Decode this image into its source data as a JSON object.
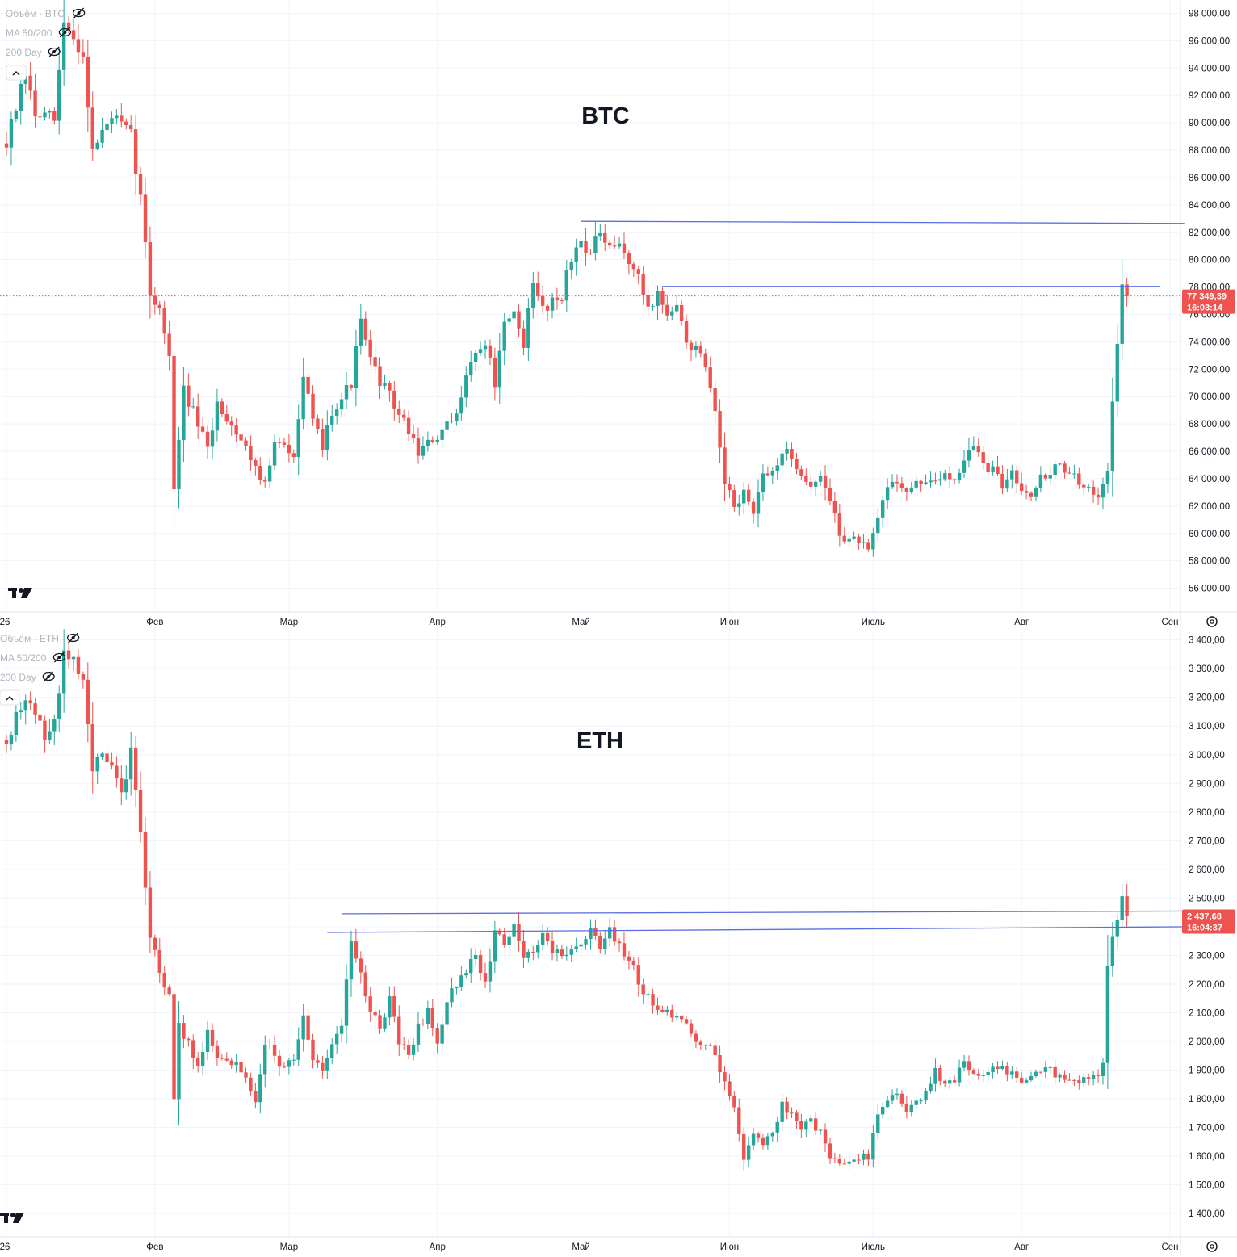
{
  "colors": {
    "up": "#26a69a",
    "down": "#ef5350",
    "level": "#5b6ee1",
    "grid": "#f0f3fa",
    "text": "#131722",
    "muted": "#b2b5be"
  },
  "icons": {
    "logo": "tradingview-logo-icon",
    "eye": "eye-off-icon",
    "collapse": "chevron-up-icon",
    "settings": "gear-icon"
  },
  "x_axis": {
    "labels": [
      "26",
      "Фев",
      "Мар",
      "Апр",
      "Май",
      "Июн",
      "Июль",
      "Авг",
      "Сен"
    ],
    "days": [
      0,
      31,
      59,
      90,
      120,
      151,
      181,
      212,
      243
    ]
  },
  "chart_data": [
    {
      "type": "candlestick",
      "title": "BTC",
      "legend": [
        "Объём · BTC",
        "MA 50/200",
        "200 Day"
      ],
      "ylim": [
        54500,
        98500
      ],
      "yticks": [
        56000,
        58000,
        60000,
        62000,
        64000,
        66000,
        68000,
        70000,
        72000,
        74000,
        76000,
        78000,
        80000,
        82000,
        84000,
        86000,
        88000,
        90000,
        92000,
        94000,
        96000,
        98000
      ],
      "ytick_labels": [
        "56 000,00",
        "58 000,00",
        "60 000,00",
        "62 000,00",
        "64 000,00",
        "66 000,00",
        "68 000,00",
        "70 000,00",
        "72 000,00",
        "74 000,00",
        "76 000,00",
        "78 000,00",
        "80 000,00",
        "82 000,00",
        "84 000,00",
        "86 000,00",
        "88 000,00",
        "90 000,00",
        "92 000,00",
        "94 000,00",
        "96 000,00",
        "98 000,00"
      ],
      "last_price": 77349.39,
      "last_price_label": "77 349,39",
      "countdown_label": "16:03:14",
      "levels": [
        {
          "from_day": 120,
          "to_day": 246,
          "from": 82800,
          "to": 82650
        },
        {
          "from_day": 137,
          "to_day": 241,
          "from": 78050,
          "to": 78050
        }
      ],
      "anchors": [
        [
          0,
          88500
        ],
        [
          4,
          93500
        ],
        [
          6,
          90500
        ],
        [
          10,
          90200
        ],
        [
          12,
          97200
        ],
        [
          16,
          95000
        ],
        [
          18,
          88000
        ],
        [
          22,
          90500
        ],
        [
          26,
          89000
        ],
        [
          28,
          84500
        ],
        [
          30,
          77500
        ],
        [
          32,
          76500
        ],
        [
          34,
          73000
        ],
        [
          35,
          63000
        ],
        [
          37,
          70500
        ],
        [
          40,
          68000
        ],
        [
          42,
          66000
        ],
        [
          44,
          69500
        ],
        [
          48,
          67500
        ],
        [
          52,
          65000
        ],
        [
          54,
          63500
        ],
        [
          56,
          66500
        ],
        [
          60,
          66000
        ],
        [
          62,
          71500
        ],
        [
          64,
          68000
        ],
        [
          66,
          66500
        ],
        [
          68,
          69000
        ],
        [
          72,
          71000
        ],
        [
          74,
          75500
        ],
        [
          76,
          72500
        ],
        [
          80,
          70000
        ],
        [
          84,
          67500
        ],
        [
          86,
          66000
        ],
        [
          88,
          66500
        ],
        [
          90,
          67000
        ],
        [
          94,
          68500
        ],
        [
          96,
          72000
        ],
        [
          100,
          74000
        ],
        [
          102,
          71000
        ],
        [
          104,
          75000
        ],
        [
          106,
          76000
        ],
        [
          108,
          74000
        ],
        [
          110,
          78000
        ],
        [
          112,
          76500
        ],
        [
          116,
          77500
        ],
        [
          118,
          80000
        ],
        [
          120,
          81500
        ],
        [
          122,
          80500
        ],
        [
          124,
          82000
        ],
        [
          126,
          80500
        ],
        [
          128,
          81000
        ],
        [
          130,
          80000
        ],
        [
          132,
          78500
        ],
        [
          134,
          76500
        ],
        [
          136,
          77500
        ],
        [
          138,
          76000
        ],
        [
          140,
          76500
        ],
        [
          142,
          74000
        ],
        [
          144,
          73500
        ],
        [
          146,
          72000
        ],
        [
          148,
          68500
        ],
        [
          150,
          63500
        ],
        [
          152,
          62000
        ],
        [
          154,
          63000
        ],
        [
          156,
          61500
        ],
        [
          158,
          64000
        ],
        [
          160,
          64500
        ],
        [
          162,
          66000
        ],
        [
          164,
          65500
        ],
        [
          166,
          64500
        ],
        [
          168,
          63500
        ],
        [
          170,
          64000
        ],
        [
          172,
          62500
        ],
        [
          174,
          60000
        ],
        [
          176,
          59500
        ],
        [
          178,
          59500
        ],
        [
          180,
          58500
        ],
        [
          182,
          61000
        ],
        [
          184,
          63500
        ],
        [
          186,
          64000
        ],
        [
          188,
          63000
        ],
        [
          190,
          63500
        ],
        [
          192,
          64000
        ],
        [
          194,
          63500
        ],
        [
          196,
          64500
        ],
        [
          198,
          64000
        ],
        [
          200,
          65500
        ],
        [
          202,
          66500
        ],
        [
          204,
          65000
        ],
        [
          206,
          64500
        ],
        [
          208,
          63500
        ],
        [
          210,
          64500
        ],
        [
          212,
          63500
        ],
        [
          214,
          63000
        ],
        [
          216,
          64000
        ],
        [
          218,
          64500
        ],
        [
          220,
          65000
        ],
        [
          222,
          64500
        ],
        [
          224,
          63500
        ],
        [
          226,
          63000
        ],
        [
          228,
          63000
        ],
        [
          229,
          64000
        ],
        [
          230,
          64500
        ],
        [
          231,
          70000
        ],
        [
          232,
          73500
        ],
        [
          233,
          78000
        ],
        [
          234,
          77350
        ]
      ],
      "seed": 7,
      "volatility": 0.011
    },
    {
      "type": "candlestick",
      "title": "ETH",
      "legend": [
        "Объём · ETH",
        "MA 50/200",
        "200 Day"
      ],
      "ylim": [
        1330,
        3430
      ],
      "yticks": [
        1400,
        1500,
        1600,
        1700,
        1800,
        1900,
        2000,
        2100,
        2200,
        2300,
        2400,
        2500,
        2600,
        2700,
        2800,
        2900,
        3000,
        3100,
        3200,
        3300,
        3400
      ],
      "ytick_labels": [
        "1 400,00",
        "1 500,00",
        "1 600,00",
        "1 700,00",
        "1 800,00",
        "1 900,00",
        "2 000,00",
        "2 100,00",
        "2 200,00",
        "2 300,00",
        "2 400,00",
        "2 500,00",
        "2 600,00",
        "2 700,00",
        "2 800,00",
        "2 900,00",
        "3 000,00",
        "3 100,00",
        "3 200,00",
        "3 300,00",
        "3 400,00"
      ],
      "last_price": 2437.68,
      "last_price_label": "2 437,68",
      "countdown_label": "16:04:37",
      "levels": [
        {
          "from_day": 70,
          "to_day": 251,
          "from": 2445,
          "to": 2455
        },
        {
          "from_day": 67,
          "to_day": 248,
          "from": 2380,
          "to": 2400
        }
      ],
      "anchors": [
        [
          0,
          3050
        ],
        [
          4,
          3200
        ],
        [
          6,
          3150
        ],
        [
          8,
          3050
        ],
        [
          10,
          3100
        ],
        [
          12,
          3350
        ],
        [
          14,
          3320
        ],
        [
          16,
          3280
        ],
        [
          18,
          2950
        ],
        [
          20,
          3000
        ],
        [
          22,
          2950
        ],
        [
          24,
          2850
        ],
        [
          26,
          3000
        ],
        [
          28,
          2750
        ],
        [
          30,
          2350
        ],
        [
          32,
          2250
        ],
        [
          34,
          2150
        ],
        [
          35,
          1800
        ],
        [
          36,
          2050
        ],
        [
          38,
          2000
        ],
        [
          40,
          1900
        ],
        [
          42,
          2050
        ],
        [
          44,
          1950
        ],
        [
          46,
          1920
        ],
        [
          48,
          1920
        ],
        [
          50,
          1880
        ],
        [
          52,
          1800
        ],
        [
          54,
          2000
        ],
        [
          56,
          1950
        ],
        [
          58,
          1900
        ],
        [
          60,
          1950
        ],
        [
          62,
          2080
        ],
        [
          64,
          1950
        ],
        [
          66,
          1900
        ],
        [
          68,
          2000
        ],
        [
          70,
          2050
        ],
        [
          72,
          2350
        ],
        [
          74,
          2250
        ],
        [
          76,
          2100
        ],
        [
          78,
          2050
        ],
        [
          80,
          2150
        ],
        [
          82,
          2000
        ],
        [
          84,
          1950
        ],
        [
          86,
          2050
        ],
        [
          88,
          2100
        ],
        [
          90,
          2000
        ],
        [
          92,
          2150
        ],
        [
          94,
          2200
        ],
        [
          96,
          2250
        ],
        [
          98,
          2300
        ],
        [
          100,
          2200
        ],
        [
          102,
          2380
        ],
        [
          104,
          2350
        ],
        [
          106,
          2400
        ],
        [
          108,
          2300
        ],
        [
          110,
          2320
        ],
        [
          112,
          2380
        ],
        [
          114,
          2320
        ],
        [
          116,
          2300
        ],
        [
          118,
          2330
        ],
        [
          120,
          2350
        ],
        [
          122,
          2380
        ],
        [
          124,
          2320
        ],
        [
          126,
          2380
        ],
        [
          128,
          2330
        ],
        [
          130,
          2300
        ],
        [
          132,
          2200
        ],
        [
          134,
          2150
        ],
        [
          136,
          2120
        ],
        [
          138,
          2100
        ],
        [
          140,
          2080
        ],
        [
          142,
          2050
        ],
        [
          144,
          2010
        ],
        [
          146,
          1990
        ],
        [
          148,
          1950
        ],
        [
          150,
          1850
        ],
        [
          152,
          1780
        ],
        [
          154,
          1580
        ],
        [
          156,
          1680
        ],
        [
          158,
          1650
        ],
        [
          160,
          1680
        ],
        [
          162,
          1780
        ],
        [
          164,
          1750
        ],
        [
          166,
          1700
        ],
        [
          168,
          1720
        ],
        [
          170,
          1680
        ],
        [
          172,
          1600
        ],
        [
          174,
          1570
        ],
        [
          176,
          1580
        ],
        [
          178,
          1600
        ],
        [
          180,
          1600
        ],
        [
          182,
          1750
        ],
        [
          184,
          1780
        ],
        [
          186,
          1820
        ],
        [
          188,
          1750
        ],
        [
          190,
          1780
        ],
        [
          192,
          1820
        ],
        [
          194,
          1900
        ],
        [
          196,
          1850
        ],
        [
          198,
          1870
        ],
        [
          200,
          1930
        ],
        [
          202,
          1900
        ],
        [
          204,
          1870
        ],
        [
          206,
          1920
        ],
        [
          208,
          1900
        ],
        [
          210,
          1880
        ],
        [
          212,
          1860
        ],
        [
          214,
          1880
        ],
        [
          216,
          1890
        ],
        [
          218,
          1900
        ],
        [
          220,
          1870
        ],
        [
          222,
          1880
        ],
        [
          224,
          1870
        ],
        [
          226,
          1870
        ],
        [
          228,
          1880
        ],
        [
          229,
          1920
        ],
        [
          230,
          2250
        ],
        [
          231,
          2350
        ],
        [
          232,
          2420
        ],
        [
          233,
          2520
        ],
        [
          234,
          2438
        ]
      ],
      "seed": 13,
      "volatility": 0.014
    }
  ]
}
